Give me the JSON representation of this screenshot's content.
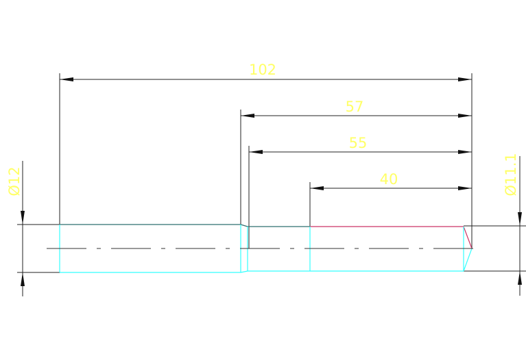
{
  "colors": {
    "background": "#ffffff",
    "dimension_line": "#222222",
    "dimension_text": "#ffff66",
    "part_outline": "#33ffff",
    "part_top_edge": "#2f6f6f",
    "highlight_edge": "#cc3366",
    "center_line": "#333333"
  },
  "dimensions": {
    "length_total": "102",
    "length_57": "57",
    "length_55": "55",
    "length_40": "40",
    "diameter_left": "Ø12",
    "diameter_right": "Ø11.1"
  }
}
